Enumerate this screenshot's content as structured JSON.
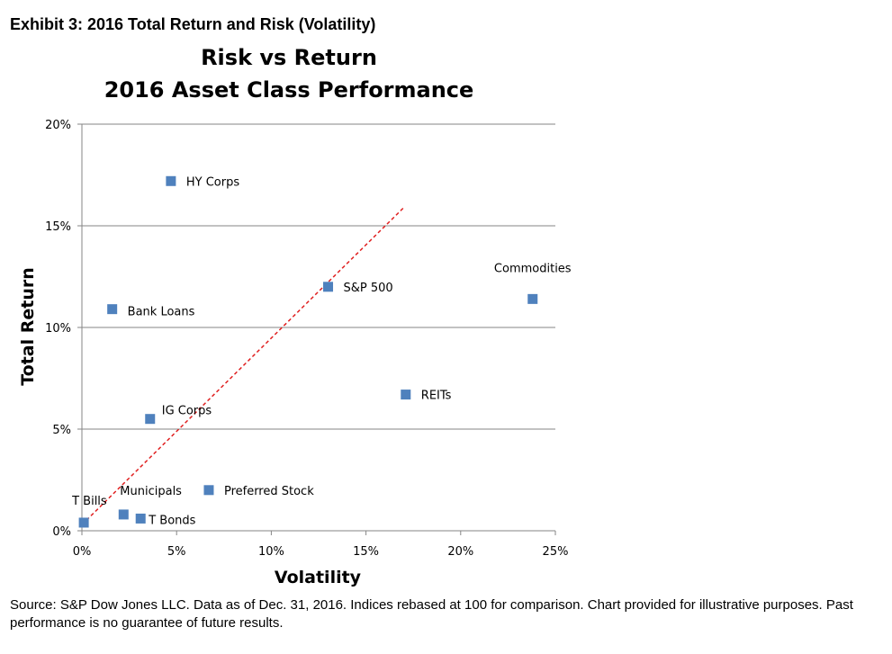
{
  "exhibit_title": "Exhibit 3: 2016 Total Return and Risk (Volatility)",
  "source_note": "Source: S&P Dow Jones LLC.  Data as of Dec. 31, 2016.  Indices rebased at 100 for comparison.  Chart provided for illustrative purposes.  Past performance is no guarantee of future results.",
  "chart_data": {
    "type": "scatter",
    "title": "Risk vs Return",
    "subtitle": "2016 Asset Class Performance",
    "xlabel": "Volatility",
    "ylabel": "Total Return",
    "xlim": [
      0,
      25
    ],
    "ylim": [
      0,
      20
    ],
    "x_ticks": [
      "0%",
      "5%",
      "10%",
      "15%",
      "20%",
      "25%"
    ],
    "y_ticks": [
      "0%",
      "5%",
      "10%",
      "15%",
      "20%"
    ],
    "grid": "horizontal",
    "legend": "none",
    "marker_color": "#4F81BD",
    "trendline": {
      "style": "dashed",
      "color": "#E02020",
      "from": [
        0,
        0.3
      ],
      "to": [
        17,
        15.9
      ]
    },
    "points": [
      {
        "label": "HY Corps",
        "x": 4.7,
        "y": 17.2
      },
      {
        "label": "Commodities",
        "x": 23.8,
        "y": 11.4
      },
      {
        "label": "S&P 500",
        "x": 13.0,
        "y": 12.0
      },
      {
        "label": "Bank Loans",
        "x": 1.6,
        "y": 10.9
      },
      {
        "label": "REITs",
        "x": 17.1,
        "y": 6.7
      },
      {
        "label": "IG Corps",
        "x": 3.6,
        "y": 5.5
      },
      {
        "label": "Preferred Stock",
        "x": 6.7,
        "y": 2.0
      },
      {
        "label": "Municipals",
        "x": 2.2,
        "y": 0.8
      },
      {
        "label": "T Bonds",
        "x": 3.1,
        "y": 0.6
      },
      {
        "label": "T Bills",
        "x": 0.1,
        "y": 0.4
      }
    ]
  }
}
